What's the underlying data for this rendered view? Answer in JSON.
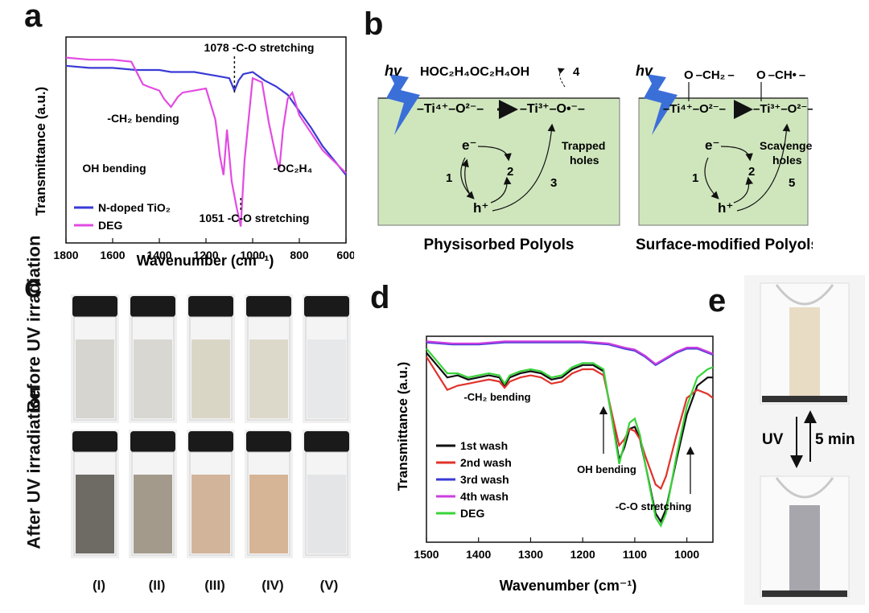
{
  "panels": {
    "a": {
      "letter": "a"
    },
    "b": {
      "letter": "b",
      "hv": "hv",
      "molecule": "HOC₂H₄OC₂H₄OH",
      "left_eq_left": "–Ti⁴⁺–O²⁻–",
      "left_eq_right": "–Ti³⁺–O•⁻–",
      "right_eq_left": "–Ti⁴⁺–O²⁻–",
      "right_eq_right": "–Ti³⁺–O²⁻–",
      "electron": "e⁻",
      "hole": "h⁺",
      "step1": "1",
      "step2": "2",
      "step3": "3",
      "step4": "4",
      "step5": "5",
      "trapped": "Trapped",
      "holes": "holes",
      "scavenge": "Scavenge",
      "grp_ch2": "O –CH₂ –",
      "grp_ch": "O –CH• –",
      "left_caption": "Physisorbed Polyols",
      "right_caption": "Surface-modified Polyols",
      "colors": {
        "surface": "#cfe6bd",
        "bolt": "#3b6fd8"
      }
    },
    "c": {
      "letter": "c",
      "before_label": "Before UV irradiation",
      "after_label": "After UV irradiation",
      "vials": [
        {
          "label": "(I)",
          "before": "#d6d5cf",
          "after": "#6e6a64"
        },
        {
          "label": "(II)",
          "before": "#d8d7d1",
          "after": "#a39a8c"
        },
        {
          "label": "(III)",
          "before": "#dad6c6",
          "after": "#d2b49b"
        },
        {
          "label": "(IV)",
          "before": "#dcd9cb",
          "after": "#d6b596"
        },
        {
          "label": "(V)",
          "before": "#e6e8ea",
          "after": "#e3e5e7"
        }
      ]
    },
    "d": {
      "letter": "d"
    },
    "e": {
      "letter": "e",
      "uv": "UV",
      "time": "5 min",
      "top_fill": "#e8dcc4",
      "bottom_fill": "#a8a6ad"
    }
  },
  "chart_data": [
    {
      "type": "line",
      "panel": "a",
      "xlabel": "Wavenumber (cm⁻¹)",
      "ylabel": "Transmittance (a.u.)",
      "xlim": [
        1800,
        600
      ],
      "x_reversed": true,
      "ylim": [
        0,
        1
      ],
      "x_ticks": [
        1800,
        1600,
        1400,
        1200,
        1000,
        800,
        600
      ],
      "legend": "bottom-left",
      "series": [
        {
          "name": "N-doped TiO₂",
          "color": "#3a3ad6",
          "x": [
            1800,
            1700,
            1600,
            1500,
            1450,
            1400,
            1350,
            1300,
            1250,
            1200,
            1150,
            1100,
            1078,
            1060,
            1040,
            1000,
            950,
            900,
            850,
            800,
            750,
            700,
            650,
            600
          ],
          "y": [
            0.86,
            0.85,
            0.85,
            0.84,
            0.84,
            0.84,
            0.83,
            0.83,
            0.83,
            0.82,
            0.81,
            0.8,
            0.74,
            0.79,
            0.82,
            0.83,
            0.79,
            0.76,
            0.72,
            0.64,
            0.56,
            0.47,
            0.4,
            0.33
          ]
        },
        {
          "name": "DEG",
          "color": "#e24be2",
          "x": [
            1800,
            1700,
            1600,
            1520,
            1470,
            1450,
            1400,
            1380,
            1350,
            1320,
            1300,
            1250,
            1200,
            1160,
            1140,
            1125,
            1110,
            1090,
            1070,
            1051,
            1035,
            1000,
            960,
            930,
            900,
            885,
            870,
            850,
            830,
            800,
            700,
            600
          ],
          "y": [
            0.9,
            0.89,
            0.89,
            0.88,
            0.77,
            0.76,
            0.74,
            0.7,
            0.66,
            0.71,
            0.73,
            0.74,
            0.75,
            0.6,
            0.42,
            0.33,
            0.55,
            0.3,
            0.18,
            0.08,
            0.4,
            0.8,
            0.78,
            0.58,
            0.42,
            0.36,
            0.55,
            0.7,
            0.73,
            0.62,
            0.45,
            0.34
          ]
        }
      ],
      "annotations": [
        {
          "text": "1078 -C-O stretching",
          "x": 1078
        },
        {
          "text": "-CH₂ bending",
          "x": 1350
        },
        {
          "text": "OH bending",
          "x": 1125
        },
        {
          "text": "-OC₂H₄",
          "x": 885
        },
        {
          "text": "1051 -C-O stretching",
          "x": 1051
        }
      ]
    },
    {
      "type": "line",
      "panel": "d",
      "xlabel": "Wavenumber (cm⁻¹)",
      "ylabel": "Transmittance (a.u.)",
      "xlim": [
        1500,
        950
      ],
      "x_reversed": true,
      "ylim": [
        0,
        1
      ],
      "x_ticks": [
        1500,
        1400,
        1300,
        1200,
        1100,
        1000
      ],
      "legend": "bottom-left",
      "series": [
        {
          "name": "1st wash",
          "color": "#111111",
          "x": [
            1500,
            1480,
            1460,
            1440,
            1420,
            1400,
            1380,
            1360,
            1350,
            1340,
            1320,
            1300,
            1280,
            1260,
            1240,
            1220,
            1200,
            1180,
            1160,
            1140,
            1130,
            1120,
            1110,
            1100,
            1090,
            1080,
            1060,
            1050,
            1040,
            1020,
            1000,
            980,
            960,
            950
          ],
          "y": [
            0.92,
            0.86,
            0.8,
            0.81,
            0.79,
            0.8,
            0.81,
            0.8,
            0.76,
            0.8,
            0.82,
            0.83,
            0.82,
            0.79,
            0.8,
            0.84,
            0.86,
            0.86,
            0.83,
            0.55,
            0.4,
            0.46,
            0.55,
            0.56,
            0.5,
            0.38,
            0.14,
            0.1,
            0.16,
            0.4,
            0.62,
            0.76,
            0.8,
            0.8
          ]
        },
        {
          "name": "2nd wash",
          "color": "#e0322b",
          "x": [
            1500,
            1480,
            1460,
            1440,
            1420,
            1400,
            1380,
            1360,
            1350,
            1340,
            1320,
            1300,
            1280,
            1260,
            1240,
            1220,
            1200,
            1180,
            1160,
            1140,
            1130,
            1120,
            1110,
            1100,
            1090,
            1080,
            1060,
            1050,
            1040,
            1020,
            1000,
            980,
            960,
            950
          ],
          "y": [
            0.9,
            0.82,
            0.74,
            0.76,
            0.77,
            0.78,
            0.79,
            0.78,
            0.75,
            0.78,
            0.8,
            0.81,
            0.8,
            0.77,
            0.78,
            0.82,
            0.84,
            0.84,
            0.81,
            0.58,
            0.47,
            0.5,
            0.55,
            0.54,
            0.5,
            0.42,
            0.28,
            0.26,
            0.32,
            0.52,
            0.7,
            0.74,
            0.72,
            0.7
          ]
        },
        {
          "name": "3rd wash",
          "color": "#3a3ad6",
          "x": [
            1500,
            1450,
            1400,
            1350,
            1300,
            1250,
            1200,
            1150,
            1120,
            1100,
            1080,
            1060,
            1040,
            1020,
            1000,
            980,
            960,
            950
          ],
          "y": [
            0.97,
            0.96,
            0.96,
            0.97,
            0.97,
            0.97,
            0.97,
            0.96,
            0.94,
            0.93,
            0.9,
            0.86,
            0.89,
            0.92,
            0.94,
            0.94,
            0.92,
            0.91
          ]
        },
        {
          "name": "4th wash",
          "color": "#cc3ee0",
          "x": [
            1500,
            1450,
            1400,
            1350,
            1300,
            1250,
            1200,
            1150,
            1120,
            1100,
            1080,
            1060,
            1040,
            1020,
            1000,
            980,
            960,
            950
          ],
          "y": [
            0.975,
            0.965,
            0.965,
            0.975,
            0.975,
            0.975,
            0.975,
            0.965,
            0.945,
            0.935,
            0.905,
            0.865,
            0.895,
            0.925,
            0.945,
            0.945,
            0.925,
            0.915
          ]
        },
        {
          "name": "DEG",
          "color": "#38d43a",
          "x": [
            1500,
            1480,
            1460,
            1440,
            1420,
            1400,
            1380,
            1360,
            1350,
            1340,
            1320,
            1300,
            1280,
            1260,
            1240,
            1220,
            1200,
            1180,
            1160,
            1140,
            1130,
            1120,
            1110,
            1100,
            1090,
            1080,
            1060,
            1050,
            1040,
            1020,
            1000,
            980,
            960,
            950
          ],
          "y": [
            0.94,
            0.88,
            0.82,
            0.82,
            0.8,
            0.81,
            0.82,
            0.81,
            0.77,
            0.81,
            0.83,
            0.84,
            0.83,
            0.8,
            0.81,
            0.85,
            0.87,
            0.87,
            0.84,
            0.54,
            0.38,
            0.48,
            0.58,
            0.6,
            0.52,
            0.38,
            0.12,
            0.08,
            0.14,
            0.42,
            0.66,
            0.8,
            0.84,
            0.85
          ]
        }
      ],
      "annotations": [
        {
          "text": "-CH₂ bending",
          "x": 1350
        },
        {
          "text": "OH bending",
          "x": 1140
        },
        {
          "text": "-C-O stretching",
          "x": 1050
        }
      ]
    }
  ]
}
